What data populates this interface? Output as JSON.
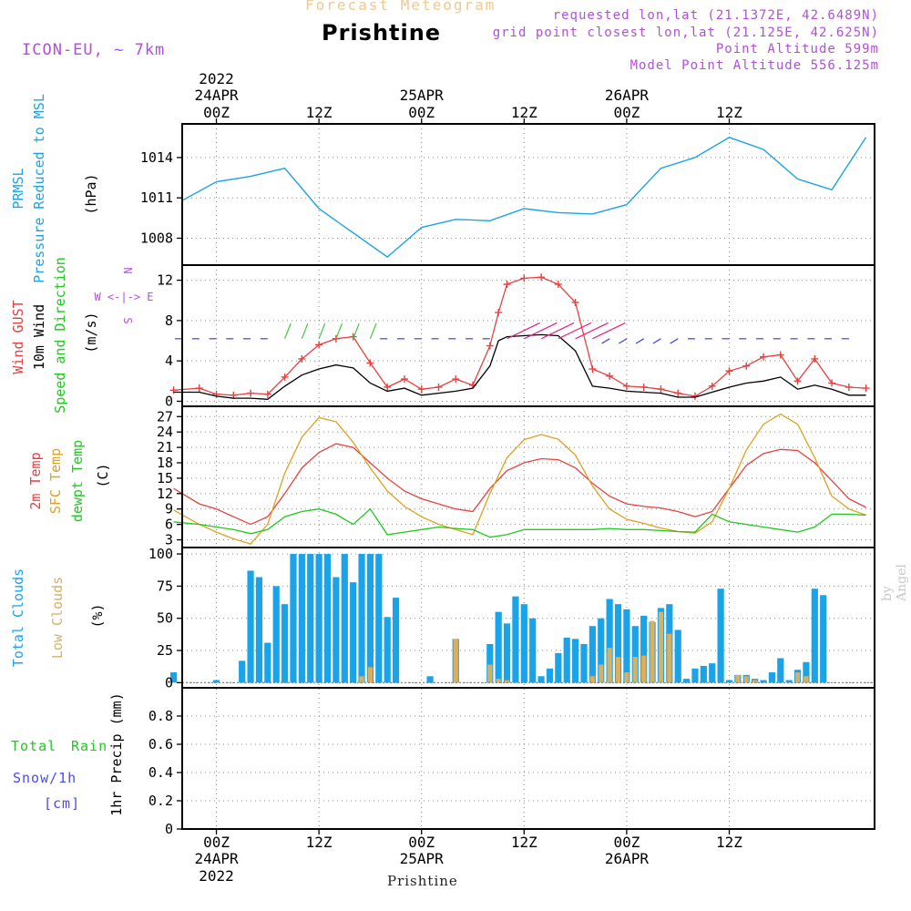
{
  "header": {
    "subtitle": "Forecast Meteogram",
    "location": "Prishtine",
    "model": "ICON-EU, ~ 7km",
    "requested": "requested lon,lat (21.1372E, 42.6489N)",
    "gridpoint": "grid point closest lon,lat (21.125E, 42.625N)",
    "point_altitude": "Point Altitude 599m",
    "model_altitude": "Model Point Altitude 556.125m"
  },
  "footer": {
    "location": "Prishtine",
    "watermark": "by Angel"
  },
  "time_axis": {
    "top_year": "2022",
    "bottom_year": "2022",
    "day_labels": [
      "24APR",
      "25APR",
      "26APR"
    ],
    "hour_labels": [
      "00Z",
      "12Z",
      "00Z",
      "12Z",
      "00Z",
      "12Z"
    ]
  },
  "colors": {
    "pressure": "#1aa3e8",
    "gust": "#e84040",
    "wind": "#000000",
    "t2m": "#e84040",
    "sfc": "#e0a020",
    "dewpt": "#20c820",
    "total_cloud": "#1aa3e8",
    "low_cloud": "#d8b060",
    "rain": "#20c820",
    "snow": "#4848ff",
    "direction": "#b050d8"
  },
  "chart_data": [
    {
      "type": "line",
      "panel": "pressure",
      "ylabel_lines": [
        "PRMSL",
        "Pressure Reduced to MSL"
      ],
      "unit": "(hPa)",
      "ylim": [
        1006,
        1016.5
      ],
      "yticks": [
        1008,
        1011,
        1014
      ],
      "x_hours": [
        -4,
        0,
        4,
        8,
        12,
        16,
        20,
        24,
        28,
        32,
        36,
        40,
        44,
        48,
        52,
        56,
        60,
        64,
        68,
        72,
        76
      ],
      "series": [
        {
          "name": "PRMSL",
          "values": [
            1010.8,
            1012.2,
            1012.6,
            1013.2,
            1010.2,
            1008.4,
            1006.6,
            1008.8,
            1009.4,
            1009.3,
            1010.2,
            1009.9,
            1009.8,
            1010.5,
            1013.2,
            1014.0,
            1015.5,
            1014.6,
            1012.4,
            1011.6,
            1015.5
          ]
        }
      ]
    },
    {
      "type": "line",
      "panel": "wind",
      "ylabel_lines": [
        "Wind GUST",
        "10m Wind",
        "Speed and Direction"
      ],
      "unit": "(m/s)",
      "compass_lines": [
        "N",
        "W <-|-> E",
        "S"
      ],
      "ylim": [
        -0.5,
        13.5
      ],
      "yticks": [
        0,
        4,
        8,
        12
      ],
      "x_hours": [
        -5,
        -2,
        0,
        2,
        4,
        6,
        8,
        10,
        12,
        14,
        16,
        18,
        20,
        22,
        24,
        26,
        28,
        30,
        32,
        33,
        34,
        36,
        38,
        40,
        42,
        44,
        46,
        48,
        50,
        52,
        54,
        56,
        58,
        60,
        62,
        64,
        66,
        68,
        70,
        72,
        74,
        76
      ],
      "series": [
        {
          "name": "Wind GUST",
          "values": [
            1.1,
            1.3,
            0.7,
            0.6,
            0.8,
            0.7,
            2.4,
            4.2,
            5.6,
            6.2,
            6.4,
            3.8,
            1.4,
            2.2,
            1.2,
            1.4,
            2.2,
            1.6,
            5.5,
            8.8,
            11.6,
            12.2,
            12.3,
            11.6,
            9.8,
            3.2,
            2.5,
            1.5,
            1.4,
            1.2,
            0.8,
            0.5,
            1.5,
            3.0,
            3.5,
            4.4,
            4.6,
            2.0,
            4.2,
            1.8,
            1.4,
            1.3
          ]
        },
        {
          "name": "10m Wind",
          "values": [
            0.9,
            0.9,
            0.5,
            0.3,
            0.3,
            0.2,
            1.5,
            2.6,
            3.2,
            3.6,
            3.3,
            1.8,
            1.0,
            1.3,
            0.6,
            0.8,
            1.0,
            1.3,
            3.5,
            6.0,
            6.4,
            6.5,
            6.6,
            6.5,
            5.0,
            1.5,
            1.3,
            1.0,
            0.9,
            0.8,
            0.4,
            0.4,
            0.9,
            1.4,
            1.8,
            2.0,
            2.4,
            1.2,
            1.6,
            1.2,
            0.6,
            0.6
          ]
        }
      ]
    },
    {
      "type": "line",
      "panel": "temperature",
      "ylabel_lines": [
        "2m Temp",
        "SFC Temp",
        "dewpt Temp"
      ],
      "unit": "(C)",
      "ylim": [
        1.5,
        29
      ],
      "yticks": [
        3,
        6,
        9,
        12,
        15,
        18,
        21,
        24,
        27
      ],
      "x_hours": [
        -5,
        -2,
        0,
        2,
        4,
        6,
        8,
        10,
        12,
        14,
        16,
        18,
        20,
        22,
        24,
        26,
        28,
        30,
        32,
        34,
        36,
        38,
        40,
        42,
        44,
        46,
        48,
        50,
        52,
        54,
        56,
        58,
        60,
        62,
        64,
        66,
        68,
        70,
        72,
        74,
        76
      ],
      "series": [
        {
          "name": "2m Temp",
          "values": [
            13.0,
            10.0,
            9.0,
            7.5,
            6.0,
            7.5,
            12.0,
            17.0,
            20.0,
            21.7,
            21.0,
            18.0,
            15.0,
            12.5,
            11.0,
            10.0,
            9.0,
            8.5,
            13.0,
            16.5,
            18.0,
            18.8,
            18.6,
            17.0,
            14.0,
            11.5,
            10.0,
            9.5,
            9.2,
            8.5,
            7.5,
            8.5,
            13.0,
            17.5,
            19.8,
            20.6,
            20.4,
            18.0,
            14.5,
            11.0,
            9.3
          ]
        },
        {
          "name": "SFC Temp",
          "values": [
            8.8,
            6.0,
            4.5,
            3.2,
            2.2,
            6.0,
            16.0,
            23.0,
            26.8,
            26.0,
            22.0,
            17.0,
            12.5,
            9.5,
            7.5,
            6.0,
            5.0,
            4.0,
            12.0,
            19.0,
            22.5,
            23.5,
            22.6,
            19.5,
            13.5,
            9.0,
            7.0,
            6.2,
            5.3,
            4.6,
            4.3,
            6.5,
            13.0,
            20.5,
            25.5,
            27.5,
            25.5,
            19.0,
            11.5,
            9.0,
            7.8
          ]
        },
        {
          "name": "dewpt Temp",
          "values": [
            6.5,
            6.0,
            5.5,
            5.0,
            4.2,
            5.0,
            7.5,
            8.5,
            9.0,
            8.0,
            6.0,
            9.0,
            4.0,
            4.5,
            5.0,
            5.5,
            5.2,
            5.0,
            3.5,
            4.0,
            5.0,
            5.0,
            5.0,
            5.0,
            5.0,
            5.2,
            5.0,
            5.0,
            4.8,
            4.6,
            4.5,
            8.0,
            6.5,
            6.0,
            5.5,
            5.0,
            4.5,
            5.5,
            8.0,
            8.0,
            7.8
          ]
        }
      ]
    },
    {
      "type": "bar",
      "panel": "clouds",
      "ylabel_lines": [
        "Total Clouds",
        "Low Clouds"
      ],
      "unit": "(%)",
      "ylim": [
        -4,
        105
      ],
      "yticks": [
        0,
        25,
        50,
        75,
        100
      ],
      "x_hours": [
        -5,
        0,
        3,
        4,
        5,
        6,
        7,
        8,
        9,
        10,
        11,
        12,
        13,
        14,
        15,
        16,
        17,
        18,
        19,
        20,
        21,
        25,
        28,
        32,
        33,
        34,
        35,
        36,
        37,
        38,
        39,
        40,
        41,
        42,
        43,
        44,
        45,
        46,
        47,
        48,
        49,
        50,
        51,
        52,
        53,
        54,
        55,
        56,
        57,
        58,
        59,
        60,
        61,
        62,
        63,
        64,
        65,
        66,
        67,
        68,
        69,
        70,
        71,
        72,
        73,
        74,
        75,
        76
      ],
      "series": [
        {
          "name": "Total Clouds",
          "values": [
            8,
            2,
            17,
            87,
            82,
            31,
            75,
            61,
            100,
            100,
            100,
            100,
            100,
            82,
            100,
            78,
            100,
            100,
            100,
            51,
            66,
            5,
            34,
            30,
            55,
            46,
            67,
            61,
            50,
            5,
            11,
            23,
            35,
            34,
            30,
            44,
            50,
            65,
            61,
            57,
            44,
            52,
            47,
            58,
            61,
            41,
            3,
            11,
            13,
            15,
            73,
            2,
            6,
            6,
            3,
            2,
            8,
            19,
            2,
            10,
            16,
            73,
            68,
            0,
            0,
            0,
            0,
            0
          ]
        },
        {
          "name": "Low Clouds",
          "values": [
            0,
            0,
            0,
            0,
            0,
            0,
            0,
            0,
            0,
            0,
            0,
            0,
            0,
            0,
            0,
            0,
            5,
            12,
            0,
            0,
            0,
            0,
            34,
            14,
            3,
            2,
            0,
            0,
            0,
            0,
            0,
            0,
            0,
            0,
            0,
            5,
            14,
            27,
            20,
            8,
            20,
            21,
            48,
            55,
            38,
            0,
            0,
            0,
            0,
            0,
            0,
            0,
            6,
            5,
            2,
            0,
            0,
            0,
            0,
            8,
            5,
            0,
            0,
            0,
            0,
            0,
            0,
            0
          ]
        }
      ]
    },
    {
      "type": "line",
      "panel": "precip",
      "legend": {
        "total": "Total",
        "rain": "Rain",
        "snow": "Snow/1h",
        "unit": "[cm]"
      },
      "ylabel": "1hr Precip (mm)",
      "ylim": [
        0,
        1.0
      ],
      "yticks": [
        "0",
        "0.2",
        "0.4",
        "0.6",
        "0.8"
      ],
      "x_hours": [
        -5,
        76
      ],
      "series": [
        {
          "name": "Total Rain",
          "values": [
            0,
            0
          ]
        }
      ]
    }
  ]
}
